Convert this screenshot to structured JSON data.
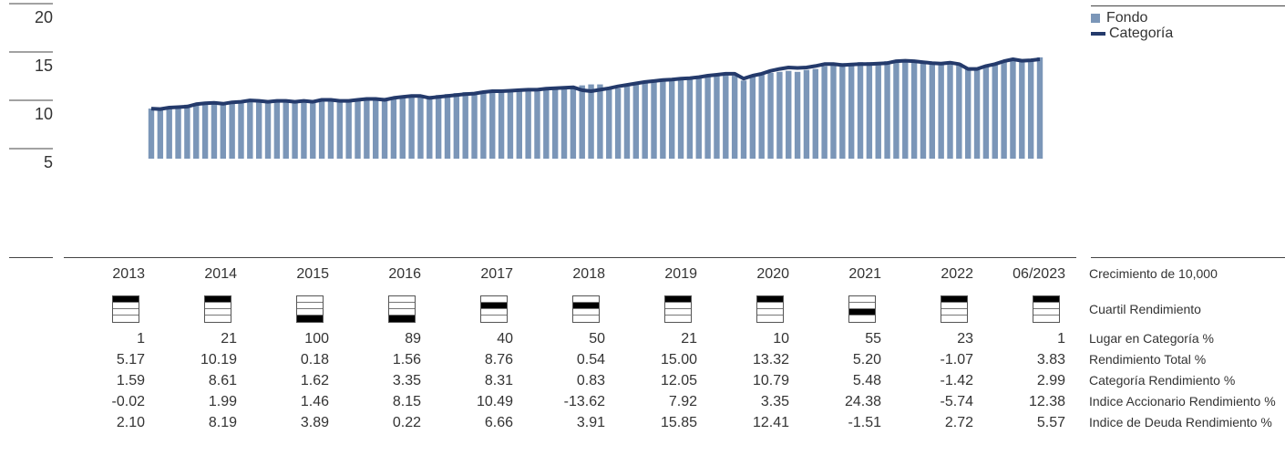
{
  "chart_data": {
    "type": "bar",
    "legend": {
      "position": "top-right",
      "fund_label": "Fondo",
      "category_label": "Categoría"
    },
    "y_ticks": [
      "20",
      "15",
      "10",
      "5"
    ],
    "ylim": [
      5,
      20
    ],
    "colors": {
      "fund": "#7b96b8",
      "category": "#243a6b"
    },
    "series": [
      {
        "name": "Fondo",
        "kind": "bar",
        "values": [
          9.9,
          10.0,
          10.0,
          10.1,
          10.3,
          10.4,
          10.4,
          10.5,
          10.5,
          10.6,
          10.6,
          10.7,
          10.6,
          10.7,
          10.7,
          10.6,
          10.7,
          10.6,
          10.8,
          10.8,
          10.7,
          10.8,
          10.8,
          10.9,
          10.9,
          10.9,
          11.0,
          11.1,
          11.2,
          11.2,
          11.1,
          11.2,
          11.3,
          11.4,
          11.5,
          11.6,
          11.6,
          11.6,
          11.7,
          11.7,
          11.8,
          11.8,
          11.9,
          11.9,
          11.8,
          12.0,
          12.1,
          12.2,
          12.3,
          12.4,
          12.4,
          12.1,
          12.0,
          12.2,
          12.4,
          12.6,
          12.7,
          12.8,
          12.9,
          13.0,
          13.0,
          13.1,
          13.2,
          13.3,
          13.4,
          13.3,
          12.8,
          13.2,
          13.5,
          13.6,
          13.7,
          13.8,
          13.7,
          13.9,
          14.0,
          14.3,
          14.4,
          14.6,
          14.5,
          14.7,
          14.7,
          14.7,
          14.8,
          14.9,
          14.8,
          14.7,
          14.7,
          14.6,
          14.6,
          14.5,
          14.6,
          14.0,
          14.1,
          14.3,
          14.5,
          14.7,
          14.9,
          14.9,
          14.9,
          15.2
        ]
      },
      {
        "name": "Categoría",
        "kind": "line",
        "values": [
          9.9,
          9.85,
          10.0,
          10.05,
          10.1,
          10.35,
          10.45,
          10.5,
          10.4,
          10.55,
          10.6,
          10.75,
          10.7,
          10.6,
          10.7,
          10.7,
          10.6,
          10.7,
          10.6,
          10.8,
          10.8,
          10.7,
          10.7,
          10.8,
          10.9,
          10.9,
          10.8,
          11.0,
          11.1,
          11.2,
          11.2,
          11.0,
          11.1,
          11.2,
          11.3,
          11.4,
          11.45,
          11.6,
          11.7,
          11.7,
          11.75,
          11.8,
          11.85,
          11.85,
          11.95,
          12.0,
          12.05,
          12.1,
          11.8,
          11.7,
          11.85,
          12.0,
          12.2,
          12.35,
          12.5,
          12.65,
          12.75,
          12.85,
          12.9,
          13.0,
          13.05,
          13.15,
          13.3,
          13.4,
          13.5,
          13.5,
          13.0,
          13.3,
          13.5,
          13.8,
          14.0,
          14.15,
          14.1,
          14.15,
          14.3,
          14.5,
          14.5,
          14.4,
          14.45,
          14.5,
          14.5,
          14.55,
          14.6,
          14.8,
          14.85,
          14.8,
          14.7,
          14.6,
          14.55,
          14.65,
          14.5,
          14.0,
          14.0,
          14.3,
          14.5,
          14.8,
          15.0,
          14.85,
          14.9,
          15.0
        ]
      }
    ],
    "table": {
      "years": [
        "2013",
        "2014",
        "2015",
        "2016",
        "2017",
        "2018",
        "2019",
        "2020",
        "2021",
        "2022",
        "06/2023"
      ],
      "quartiles": [
        1,
        1,
        4,
        4,
        2,
        2,
        1,
        1,
        3,
        1,
        1
      ],
      "rows": [
        {
          "label": "Crecimiento de 10,000",
          "values": []
        },
        {
          "label": "Cuartil Rendimiento",
          "values": []
        },
        {
          "label": "Lugar en Categoría %",
          "values": [
            "1",
            "21",
            "100",
            "89",
            "40",
            "50",
            "21",
            "10",
            "55",
            "23",
            "1"
          ]
        },
        {
          "label": "Rendimiento Total %",
          "values": [
            "5.17",
            "10.19",
            "0.18",
            "1.56",
            "8.76",
            "0.54",
            "15.00",
            "13.32",
            "5.20",
            "-1.07",
            "3.83"
          ]
        },
        {
          "label": "Categoría Rendimiento %",
          "values": [
            "1.59",
            "8.61",
            "1.62",
            "3.35",
            "8.31",
            "0.83",
            "12.05",
            "10.79",
            "5.48",
            "-1.42",
            "2.99"
          ]
        },
        {
          "label": "Indice Accionario Rendimiento %",
          "values": [
            "-0.02",
            "1.99",
            "1.46",
            "8.15",
            "10.49",
            "-13.62",
            "7.92",
            "3.35",
            "24.38",
            "-5.74",
            "12.38"
          ]
        },
        {
          "label": "Indice de Deuda Rendimiento %",
          "values": [
            "2.10",
            "8.19",
            "3.89",
            "0.22",
            "6.66",
            "3.91",
            "15.85",
            "12.41",
            "-1.51",
            "2.72",
            "5.57"
          ]
        }
      ]
    }
  }
}
